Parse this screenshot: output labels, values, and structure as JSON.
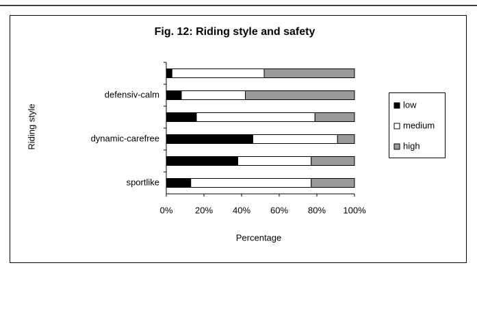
{
  "chart_data": {
    "type": "bar",
    "orientation": "horizontal",
    "stacked": true,
    "title": "Fig. 12: Riding style and safety",
    "xlabel": "Percentage",
    "ylabel": "Riding style",
    "categories": [
      null,
      "defensiv-calm",
      null,
      "dynamic-carefree",
      null,
      "sportlike"
    ],
    "series": [
      {
        "name": "low",
        "color": "#000000",
        "values": [
          3,
          8,
          16,
          46,
          38,
          13
        ]
      },
      {
        "name": "medium",
        "color": "#ffffff",
        "values": [
          49,
          34,
          63,
          45,
          39,
          64
        ]
      },
      {
        "name": "high",
        "color": "#999999",
        "values": [
          48,
          58,
          21,
          9,
          23,
          23
        ]
      }
    ],
    "xlim": [
      0,
      100
    ],
    "xticks": [
      {
        "value": 0,
        "label": "0%"
      },
      {
        "value": 20,
        "label": "20%"
      },
      {
        "value": 40,
        "label": "40%"
      },
      {
        "value": 60,
        "label": "60%"
      },
      {
        "value": 80,
        "label": "80%"
      },
      {
        "value": 100,
        "label": "100%"
      }
    ],
    "legend": "right"
  }
}
